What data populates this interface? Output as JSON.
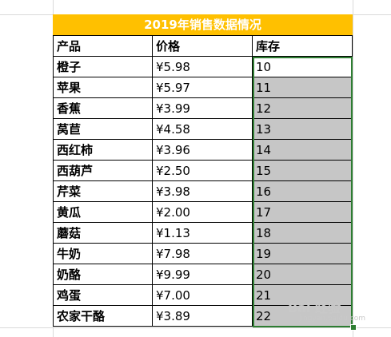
{
  "sheet": {
    "title": "2019年销售数据情况",
    "headers": [
      "产品",
      "价格",
      "库存"
    ],
    "rows": [
      {
        "product": "橙子",
        "price": "¥5.98",
        "stock": "10"
      },
      {
        "product": "苹果",
        "price": "¥5.97",
        "stock": "11"
      },
      {
        "product": "香蕉",
        "price": "¥3.99",
        "stock": "12"
      },
      {
        "product": "莴苣",
        "price": "¥4.58",
        "stock": "13"
      },
      {
        "product": "西红柿",
        "price": "¥3.96",
        "stock": "14"
      },
      {
        "product": "西葫芦",
        "price": "¥2.50",
        "stock": "15"
      },
      {
        "product": "芹菜",
        "price": "¥3.98",
        "stock": "16"
      },
      {
        "product": "黄瓜",
        "price": "¥2.00",
        "stock": "17"
      },
      {
        "product": "蘑菇",
        "price": "¥1.13",
        "stock": "18"
      },
      {
        "product": "牛奶",
        "price": "¥7.98",
        "stock": "19"
      },
      {
        "product": "奶酪",
        "price": "¥9.99",
        "stock": "20"
      },
      {
        "product": "鸡蛋",
        "price": "¥7.00",
        "stock": "21"
      },
      {
        "product": "农家干酪",
        "price": "¥3.89",
        "stock": "22"
      }
    ]
  },
  "colors": {
    "title_bg": "#ffc000",
    "selection_fill": "#c6c6c6",
    "selection_border": "#2e7d32"
  },
  "watermark": {
    "main": "Bai 经验",
    "sub": "jingyan.baidu.com"
  }
}
